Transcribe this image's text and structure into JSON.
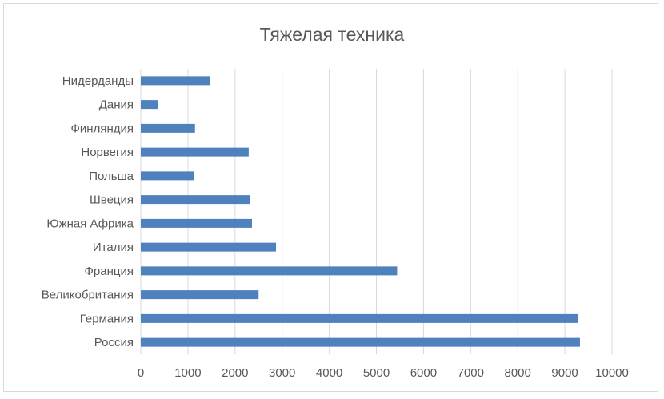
{
  "chart_data": {
    "type": "bar",
    "orientation": "horizontal",
    "title": "Тяжелая техника",
    "xlabel": "",
    "ylabel": "",
    "categories": [
      "Россия",
      "Германия",
      "Великобритания",
      "Франция",
      "Италия",
      "Южная Африка",
      "Швеция",
      "Польша",
      "Норвегия",
      "Финляндия",
      "Дания",
      "Нидерданды"
    ],
    "values": [
      9320,
      9270,
      2500,
      5440,
      2870,
      2360,
      2320,
      1120,
      2290,
      1150,
      360,
      1460
    ],
    "xlim": [
      0,
      10000
    ],
    "xticks": [
      "0",
      "1000",
      "2000",
      "3000",
      "4000",
      "5000",
      "6000",
      "7000",
      "8000",
      "9000",
      "10000"
    ],
    "grid": "vertical",
    "legend": "none",
    "bar_color": "#4f81bd",
    "grid_color": "#d9d9d9"
  }
}
